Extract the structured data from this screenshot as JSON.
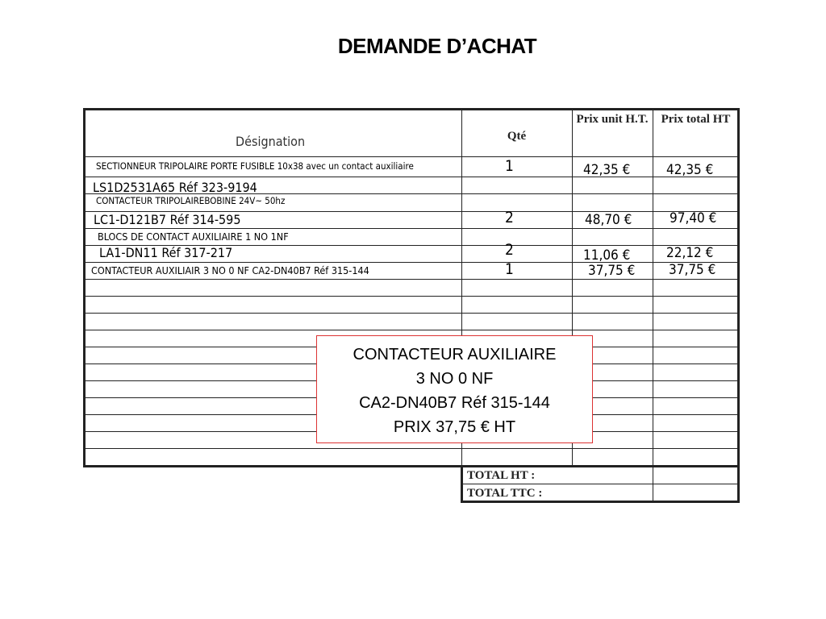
{
  "title": "DEMANDE D’ACHAT",
  "headers": {
    "designation": "Désignation",
    "qty": "Qté",
    "unit_price": "Prix unit H.T.",
    "total_price": "Prix  total HT"
  },
  "rows": [
    {
      "designation": "SECTIONNEUR TRIPOLAIRE PORTE FUSIBLE 10x38 avec un contact auxiliaire",
      "ref": "LS1D2531A65  Réf 323-9194",
      "qty": "1",
      "unit": "42,35  €",
      "total": "42,35  €"
    },
    {
      "designation": "CONTACTEUR TRIPOLAIREBOBINE 24V~ 50hz",
      "ref": "LC1-D121B7  Réf 314-595",
      "qty": "2",
      "unit": "48,70  €",
      "total": "97,40  €"
    },
    {
      "designation": "BLOCS DE CONTACT AUXILIAIRE 1 NO 1NF",
      "ref": "LA1-DN11  Réf 317-217",
      "qty": "2",
      "unit": "11,06  €",
      "total": "22,12  €"
    },
    {
      "designation": "CONTACTEUR AUXILIAIR 3 NO 0 NF CA2-DN40B7 Réf 315-144",
      "qty": "1",
      "unit": "37,75  €",
      "total": "37,75  €"
    }
  ],
  "totals": {
    "ht": "TOTAL HT :",
    "ttc": "TOTAL TTC :"
  },
  "callout": {
    "line1": "CONTACTEUR AUXILIAIRE",
    "line2": "3 NO 0 NF",
    "line3": "CA2-DN40B7 Réf 315-144",
    "line4": "PRIX 37,75  € HT"
  },
  "colors": {
    "callout_border": "#dd3333"
  }
}
